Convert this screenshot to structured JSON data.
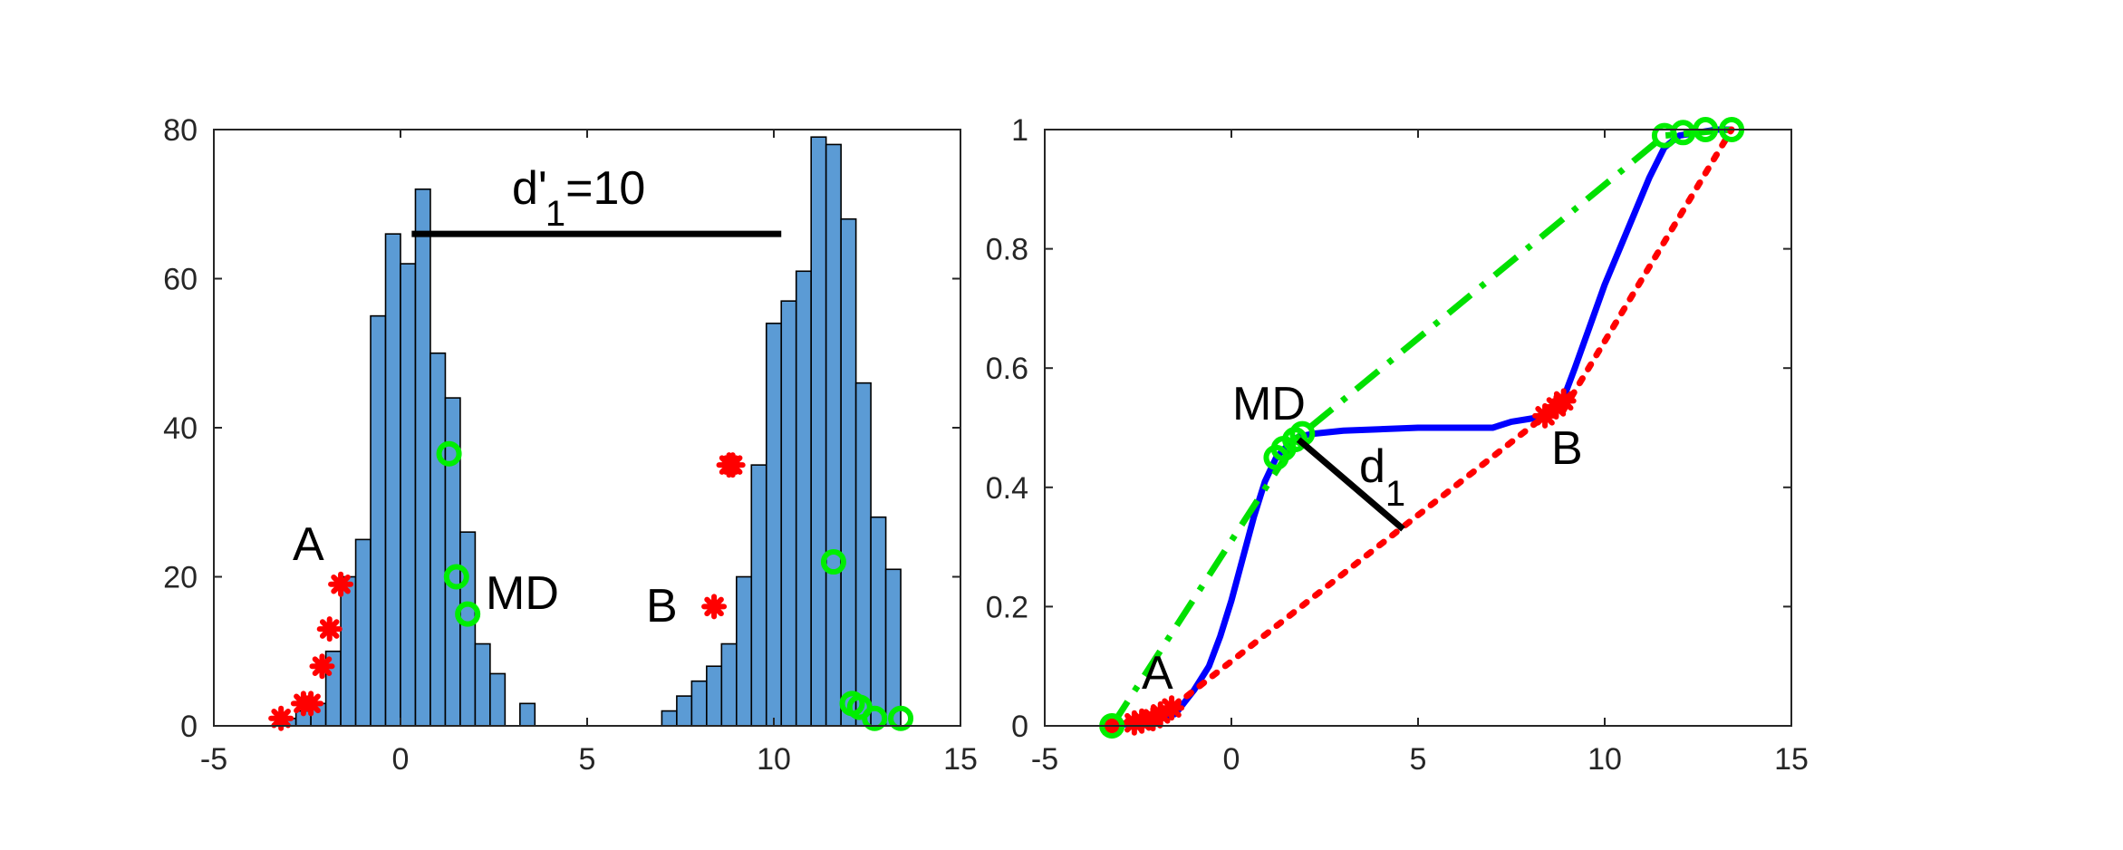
{
  "chart_data": [
    {
      "type": "histogram",
      "xlim": [
        -5,
        15
      ],
      "ylim": [
        0,
        80
      ],
      "xticks": [
        -5,
        0,
        5,
        10,
        15
      ],
      "yticks": [
        0,
        20,
        40,
        60,
        80
      ],
      "bin_width": 0.4,
      "bar_color": "#5b9bd5",
      "bins": [
        {
          "x0": -3.2,
          "count": 1
        },
        {
          "x0": -2.8,
          "count": 2
        },
        {
          "x0": -2.4,
          "count": 3
        },
        {
          "x0": -2.0,
          "count": 10
        },
        {
          "x0": -1.6,
          "count": 20
        },
        {
          "x0": -1.2,
          "count": 25
        },
        {
          "x0": -0.8,
          "count": 55
        },
        {
          "x0": -0.4,
          "count": 66
        },
        {
          "x0": 0.0,
          "count": 62
        },
        {
          "x0": 0.4,
          "count": 72
        },
        {
          "x0": 0.8,
          "count": 50
        },
        {
          "x0": 1.2,
          "count": 44
        },
        {
          "x0": 1.6,
          "count": 26
        },
        {
          "x0": 2.0,
          "count": 11
        },
        {
          "x0": 2.4,
          "count": 7
        },
        {
          "x0": 2.8,
          "count": 0
        },
        {
          "x0": 3.2,
          "count": 3
        },
        {
          "x0": 7.0,
          "count": 2
        },
        {
          "x0": 7.4,
          "count": 4
        },
        {
          "x0": 7.8,
          "count": 6
        },
        {
          "x0": 8.2,
          "count": 8
        },
        {
          "x0": 8.6,
          "count": 11
        },
        {
          "x0": 9.0,
          "count": 20
        },
        {
          "x0": 9.4,
          "count": 35
        },
        {
          "x0": 9.8,
          "count": 54
        },
        {
          "x0": 10.2,
          "count": 57
        },
        {
          "x0": 10.6,
          "count": 61
        },
        {
          "x0": 11.0,
          "count": 79
        },
        {
          "x0": 11.4,
          "count": 78
        },
        {
          "x0": 11.8,
          "count": 68
        },
        {
          "x0": 12.2,
          "count": 46
        },
        {
          "x0": 12.6,
          "count": 28
        },
        {
          "x0": 13.0,
          "count": 21
        }
      ],
      "markers_red": [
        [
          -3.2,
          1
        ],
        [
          -2.6,
          3
        ],
        [
          -2.4,
          3
        ],
        [
          -2.1,
          8
        ],
        [
          -1.9,
          13
        ],
        [
          -1.6,
          19
        ],
        [
          8.4,
          16
        ],
        [
          8.8,
          35
        ],
        [
          8.9,
          35
        ]
      ],
      "markers_green": [
        [
          1.3,
          36.5
        ],
        [
          1.5,
          20
        ],
        [
          1.8,
          15
        ],
        [
          11.6,
          22
        ],
        [
          12.1,
          3
        ],
        [
          12.3,
          2.5
        ],
        [
          12.7,
          1
        ],
        [
          13.4,
          1
        ]
      ],
      "bracket": {
        "x1": 0.3,
        "x2": 10.2,
        "y": 66
      },
      "annotations": {
        "d_prime": "d'",
        "d_prime_sub": "1",
        "d_prime_value": "=10",
        "A": "A",
        "B": "B",
        "MD": "MD"
      },
      "xtick_labels": [
        "-5",
        "0",
        "5",
        "10",
        "15"
      ],
      "ytick_labels": [
        "0",
        "20",
        "40",
        "60",
        "80"
      ]
    },
    {
      "type": "line",
      "xlim": [
        -5,
        15
      ],
      "ylim": [
        0,
        1
      ],
      "xticks": [
        -5,
        0,
        5,
        10,
        15
      ],
      "yticks": [
        0,
        0.2,
        0.4,
        0.6,
        0.8,
        1
      ],
      "series": [
        {
          "style": "solid",
          "color": "#0000ff",
          "x": [
            -3.2,
            -2.5,
            -2.0,
            -1.5,
            -1.0,
            -0.6,
            -0.3,
            0.0,
            0.3,
            0.6,
            0.9,
            1.2,
            1.5,
            1.8,
            2.2,
            3.0,
            5.0,
            7.0,
            7.5,
            8.0,
            8.5,
            8.9,
            9.2,
            9.6,
            10.0,
            10.4,
            10.8,
            11.2,
            11.6,
            12.0,
            12.5,
            13.0,
            13.4
          ],
          "y": [
            0.0,
            0.005,
            0.01,
            0.02,
            0.06,
            0.1,
            0.15,
            0.21,
            0.28,
            0.35,
            0.41,
            0.45,
            0.47,
            0.485,
            0.49,
            0.495,
            0.5,
            0.5,
            0.51,
            0.515,
            0.52,
            0.55,
            0.6,
            0.67,
            0.74,
            0.8,
            0.86,
            0.92,
            0.97,
            0.99,
            0.995,
            1.0,
            1.0
          ]
        },
        {
          "style": "dashdot",
          "color": "#00e000",
          "x": [
            -3.2,
            1.8,
            11.6,
            13.4
          ],
          "y": [
            0.0,
            0.485,
            0.99,
            1.0
          ]
        },
        {
          "style": "dotted",
          "color": "#ff0000",
          "x": [
            -3.2,
            -1.6,
            8.4,
            8.9,
            13.4
          ],
          "y": [
            0.0,
            0.03,
            0.52,
            0.53,
            1.0
          ]
        }
      ],
      "markers_red": [
        [
          -3.2,
          0
        ],
        [
          -2.6,
          0.005
        ],
        [
          -2.4,
          0.008
        ],
        [
          -2.1,
          0.012
        ],
        [
          -1.9,
          0.02
        ],
        [
          -1.6,
          0.03
        ],
        [
          8.4,
          0.52
        ],
        [
          8.7,
          0.535
        ],
        [
          8.9,
          0.545
        ]
      ],
      "markers_green": [
        [
          -3.2,
          0
        ],
        [
          1.2,
          0.45
        ],
        [
          1.4,
          0.465
        ],
        [
          1.7,
          0.48
        ],
        [
          1.9,
          0.49
        ],
        [
          11.6,
          0.99
        ],
        [
          12.1,
          0.995
        ],
        [
          12.7,
          1.0
        ],
        [
          13.4,
          1.0
        ]
      ],
      "d1_segment": {
        "x1": 1.8,
        "y1": 0.48,
        "x2": 4.6,
        "y2": 0.33
      },
      "annotations": {
        "MD": "MD",
        "B": "B",
        "A": "A",
        "d": "d",
        "d_sub": "1"
      },
      "xtick_labels": [
        "-5",
        "0",
        "5",
        "10",
        "15"
      ],
      "ytick_labels": [
        "0",
        "0.2",
        "0.4",
        "0.6",
        "0.8",
        "1"
      ]
    }
  ]
}
